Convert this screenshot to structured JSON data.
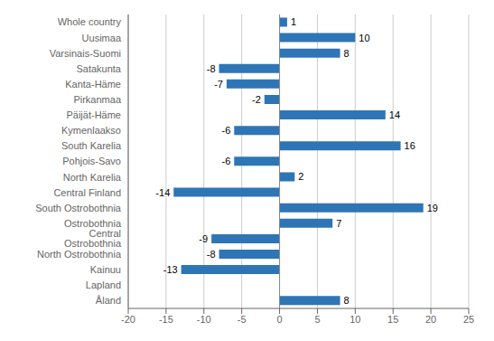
{
  "chart_data": {
    "type": "bar",
    "orientation": "horizontal",
    "categories": [
      "Whole country",
      "Uusimaa",
      "Varsinais-Suomi",
      "Satakunta",
      "Kanta-Häme",
      "Pirkanmaa",
      "Päijät-Häme",
      "Kymenlaakso",
      "South Karelia",
      "Pohjois-Savo",
      "North Karelia",
      "Central Finland",
      "South Ostrobothnia",
      "Ostrobothnia",
      "Central Ostrobothnia",
      "North Ostrobothnia",
      "Kainuu",
      "Lapland",
      "Åland"
    ],
    "values": [
      1,
      10,
      8,
      -8,
      -7,
      -2,
      14,
      -6,
      16,
      -6,
      2,
      -14,
      19,
      7,
      -9,
      -8,
      -13,
      0,
      8
    ],
    "color": "#2E75B6",
    "xlim": [
      -20,
      25
    ],
    "xticks": [
      -20,
      -15,
      -10,
      -5,
      0,
      5,
      10,
      15,
      20,
      25
    ],
    "grid": true,
    "data_labels": true
  }
}
